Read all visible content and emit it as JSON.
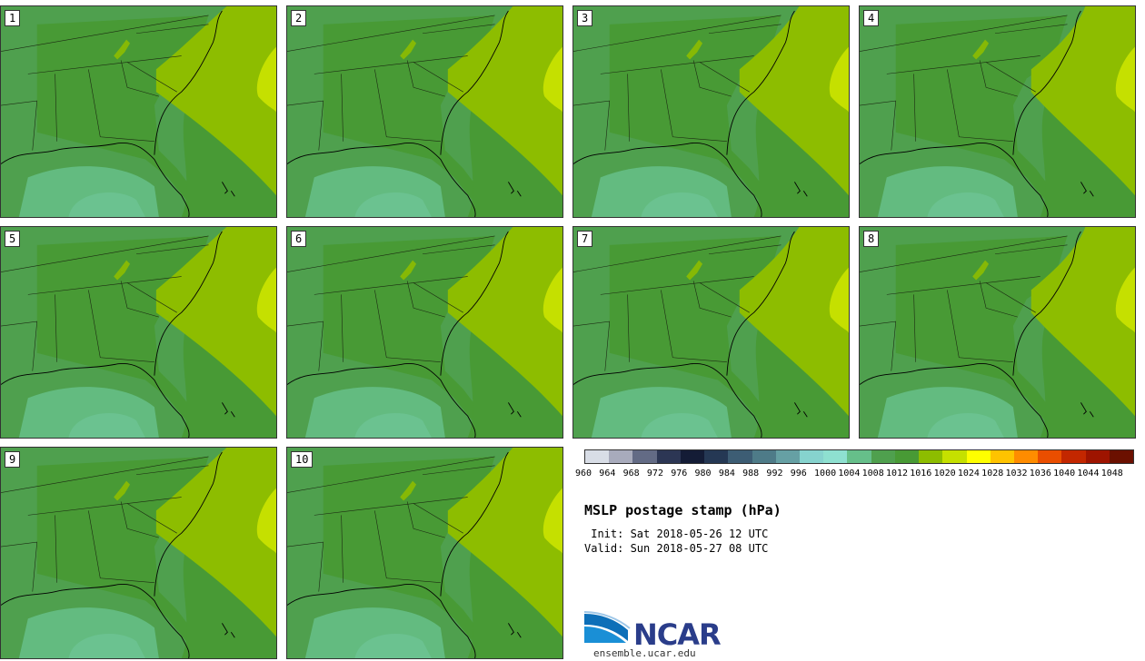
{
  "panels": [
    {
      "label": "1",
      "east_high": 1020
    },
    {
      "label": "2",
      "east_high": 1020
    },
    {
      "label": "3",
      "east_high": 1020
    },
    {
      "label": "4",
      "east_high": 1020
    },
    {
      "label": "5",
      "east_high": 1020
    },
    {
      "label": "6",
      "east_high": 1020
    },
    {
      "label": "7",
      "east_high": 1020
    },
    {
      "label": "8",
      "east_high": 1020
    },
    {
      "label": "9",
      "east_high": 1020
    },
    {
      "label": "10",
      "east_high": 1020
    }
  ],
  "colorbar": {
    "ticks": [
      "960",
      "964",
      "968",
      "972",
      "976",
      "980",
      "984",
      "988",
      "992",
      "996",
      "1000",
      "1004",
      "1008",
      "1012",
      "1016",
      "1020",
      "1024",
      "1028",
      "1032",
      "1036",
      "1040",
      "1044",
      "1048"
    ],
    "colors": [
      "#d8dde6",
      "#a8abbc",
      "#636b85",
      "#2c3654",
      "#141c36",
      "#253854",
      "#3d5d74",
      "#4e7b88",
      "#66a0a4",
      "#86d3ce",
      "#8ee0d0",
      "#66bf8a",
      "#4fa04e",
      "#489a35",
      "#8dbd00",
      "#c5e000",
      "#ffff00",
      "#ffc300",
      "#ff8c00",
      "#ea4e00",
      "#c32700",
      "#9e1400",
      "#6b1000"
    ]
  },
  "title": "MSLP postage stamp (hPa)",
  "init": " Init: Sat 2018-05-26 12 UTC",
  "valid": "Valid: Sun 2018-05-27 08 UTC",
  "logo": {
    "name": "NCAR",
    "url": "ensemble.ucar.edu"
  },
  "map_colors": {
    "c1008": "#66bf8a",
    "c1012": "#4fa04e",
    "c1016": "#489a35",
    "c1020": "#8dbd00",
    "c1024": "#c5e000"
  }
}
